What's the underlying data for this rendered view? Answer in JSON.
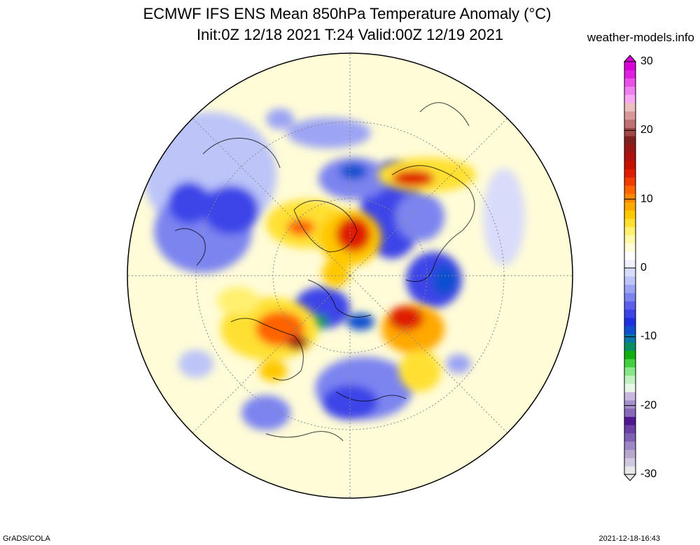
{
  "header": {
    "title_line1": "ECMWF IFS ENS Mean 850hPa Temperature Anomaly (°C)",
    "title_line2": "Init:0Z 12/18 2021  T:24 Valid:00Z 12/19 2021",
    "site": "weather-models.info"
  },
  "footer": {
    "software": "GrADS/COLA",
    "timestamp": "2021-12-18-16:43"
  },
  "colorbar": {
    "ticks": [
      {
        "value": 30,
        "label": "30"
      },
      {
        "value": 20,
        "label": "20"
      },
      {
        "value": 10,
        "label": "10"
      },
      {
        "value": 0,
        "label": "0"
      },
      {
        "value": -10,
        "label": "-10"
      },
      {
        "value": -20,
        "label": "-20"
      },
      {
        "value": -30,
        "label": "-30"
      }
    ],
    "colors_bottom_to_top": [
      "#e8e8e8",
      "#d0c8e0",
      "#b8a8d0",
      "#9c88c4",
      "#8060b4",
      "#6a40a4",
      "#501890",
      "#8868b8",
      "#a890cc",
      "#c8b8e0",
      "#e8f8e8",
      "#c0f0c0",
      "#88e888",
      "#40d040",
      "#10b010",
      "#0a9060",
      "#0878a8",
      "#1050d0",
      "#2030e0",
      "#3c44e8",
      "#5a60ec",
      "#7c84f0",
      "#9ca4f4",
      "#bcc4f8",
      "#d8dcfa",
      "#eef0fc",
      "#ffffff",
      "#fffcd8",
      "#fff8a8",
      "#fff070",
      "#ffe030",
      "#ffc800",
      "#ffa800",
      "#ff8800",
      "#ff6400",
      "#f03c00",
      "#e01c00",
      "#c81000",
      "#b01010",
      "#981818",
      "#802020",
      "#a04848",
      "#c07070",
      "#d89898",
      "#ecc0c0",
      "#f8a8f0",
      "#f080f0",
      "#e850e8",
      "#e020e0",
      "#d800d8"
    ]
  },
  "map": {
    "projection": "north-polar-stereographic",
    "field": "850hPa temperature anomaly",
    "background_color": "#fffcd8",
    "warm_color": "#ffe030",
    "hot_color": "#e01c00",
    "cold_color": "#2030e0",
    "very_cold_color": "#0a9060"
  }
}
